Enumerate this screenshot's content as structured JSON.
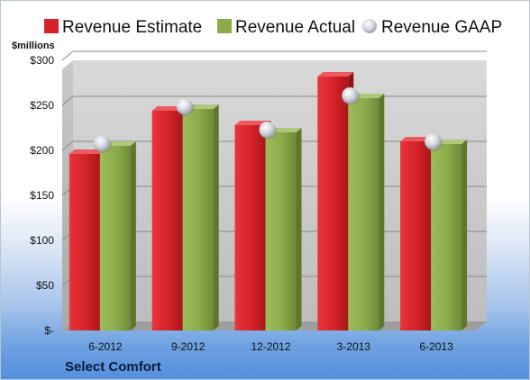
{
  "chart_data": {
    "type": "bar",
    "title": "",
    "unit_label": "$millions",
    "company": "Select Comfort",
    "categories": [
      "6-2012",
      "9-2012",
      "12-2012",
      "3-2013",
      "6-2013"
    ],
    "series": [
      {
        "name": "Revenue Estimate",
        "type": "bar",
        "color": "#d42228",
        "values": [
          196,
          244,
          228,
          282,
          210
        ]
      },
      {
        "name": "Revenue Actual",
        "type": "bar",
        "color": "#8bab4a",
        "values": [
          205,
          246,
          220,
          258,
          207
        ]
      },
      {
        "name": "Revenue GAAP",
        "type": "marker",
        "color": "#c9ccd6",
        "values": [
          205,
          246,
          220,
          258,
          207
        ]
      }
    ],
    "ylim": [
      0,
      300
    ],
    "yticks": [
      0,
      50,
      100,
      150,
      200,
      250,
      300
    ],
    "ytick_labels": [
      "$-",
      "$50",
      "$100",
      "$150",
      "$200",
      "$250",
      "$300"
    ],
    "grid": true,
    "legend_position": "top"
  }
}
